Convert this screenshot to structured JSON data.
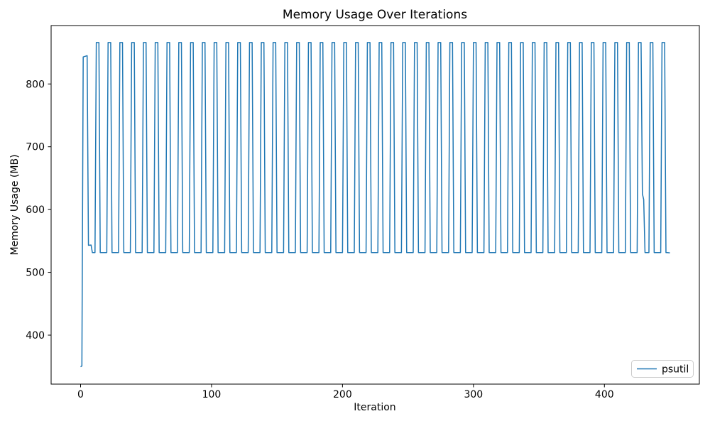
{
  "figure": {
    "background_color": "#ffffff",
    "frame_color": "#000000"
  },
  "legend": {
    "position": "lower-right",
    "entries": [
      {
        "label": "psutil",
        "color": "#1f77b4"
      }
    ]
  },
  "chart_data": {
    "type": "line",
    "title": "Memory Usage Over Iterations",
    "xlabel": "Iteration",
    "ylabel": "Memory Usage (MB)",
    "xlim": [
      -22.5,
      472.5
    ],
    "ylim": [
      322,
      893
    ],
    "x_ticks": [
      0,
      100,
      200,
      300,
      400
    ],
    "y_ticks": [
      400,
      500,
      600,
      700,
      800
    ],
    "grid": false,
    "legend_position": "lower-right",
    "series": [
      {
        "name": "psutil",
        "color": "#1f77b4",
        "line_width": 1.5,
        "waveform": {
          "description": "Memory in MB sampled each iteration: starts ~350, first peak ~844, then a ~9-iteration-period square wave between a low plateau ~531.5 and high plateau ~866; one fall pauses near 620 around iteration 429; trace ends low at iteration 450.",
          "intro_points": [
            [
              0,
              349.5
            ],
            [
              1,
              351
            ],
            [
              2,
              843
            ],
            [
              5,
              845
            ],
            [
              6,
              543
            ],
            [
              8,
              543.5
            ],
            [
              9,
              531.5
            ]
          ],
          "low_value": 531.5,
          "high_value": 866,
          "rise_iterations_to_high": 1,
          "high_hold_iterations": 2,
          "pulse_rise_iterations": [
            11,
            20,
            29,
            38,
            47,
            56,
            65,
            74,
            83,
            92,
            101,
            110,
            119,
            128,
            137,
            146,
            155,
            164,
            173,
            182,
            191,
            200,
            209,
            218,
            227,
            236,
            245,
            254,
            263,
            272,
            281,
            290,
            299,
            308,
            317,
            326,
            335,
            344,
            353,
            362,
            371,
            380,
            389,
            398,
            407,
            416,
            425,
            434,
            443
          ],
          "anomaly": {
            "pulse_rise": 425,
            "fall_step_points": [
              [
                429,
                625
              ],
              [
                430,
                616
              ]
            ]
          },
          "tail_points": [
            [
              448,
              531.5
            ],
            [
              450,
              531
            ]
          ]
        }
      }
    ]
  }
}
